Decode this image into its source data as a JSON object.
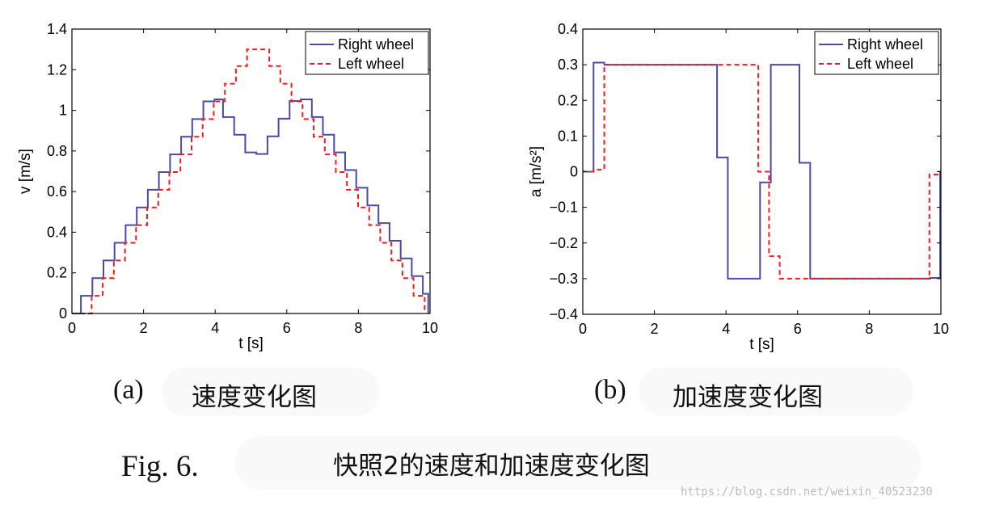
{
  "chart_data": [
    {
      "type": "line",
      "panel": "(a)",
      "title": "",
      "xlabel": "t [s]",
      "ylabel": "v [m/s]",
      "xlim": [
        0,
        10
      ],
      "ylim": [
        0,
        1.4
      ],
      "xticks": [
        "0",
        "2",
        "4",
        "6",
        "8",
        "10"
      ],
      "yticks": [
        "0",
        "0.2",
        "0.4",
        "0.6",
        "0.8",
        "1",
        "1.2",
        "1.4"
      ],
      "grid": false,
      "legend_position": "top-right",
      "step": true,
      "series": [
        {
          "name": "Right wheel",
          "color": "#4a4aa8",
          "style": "solid",
          "points": [
            [
              0,
              0
            ],
            [
              0.25,
              0
            ],
            [
              0.25,
              0.087
            ],
            [
              0.57,
              0.087
            ],
            [
              0.57,
              0.174
            ],
            [
              0.88,
              0.174
            ],
            [
              0.88,
              0.261
            ],
            [
              1.19,
              0.261
            ],
            [
              1.19,
              0.348
            ],
            [
              1.5,
              0.348
            ],
            [
              1.5,
              0.435
            ],
            [
              1.81,
              0.435
            ],
            [
              1.81,
              0.522
            ],
            [
              2.12,
              0.522
            ],
            [
              2.12,
              0.609
            ],
            [
              2.43,
              0.609
            ],
            [
              2.43,
              0.696
            ],
            [
              2.74,
              0.696
            ],
            [
              2.74,
              0.783
            ],
            [
              3.05,
              0.783
            ],
            [
              3.05,
              0.87
            ],
            [
              3.36,
              0.87
            ],
            [
              3.36,
              0.957
            ],
            [
              3.67,
              0.957
            ],
            [
              3.67,
              1.044
            ],
            [
              3.98,
              1.044
            ],
            [
              3.98,
              1.054
            ],
            [
              4.22,
              1.054
            ],
            [
              4.22,
              0.967
            ],
            [
              4.53,
              0.967
            ],
            [
              4.53,
              0.88
            ],
            [
              4.84,
              0.88
            ],
            [
              4.84,
              0.793
            ],
            [
              5.15,
              0.793
            ],
            [
              5.15,
              0.785
            ],
            [
              5.46,
              0.785
            ],
            [
              5.46,
              0.872
            ],
            [
              5.77,
              0.872
            ],
            [
              5.77,
              0.959
            ],
            [
              6.08,
              0.959
            ],
            [
              6.08,
              1.046
            ],
            [
              6.39,
              1.046
            ],
            [
              6.39,
              1.054
            ],
            [
              6.7,
              1.054
            ],
            [
              6.7,
              0.967
            ],
            [
              7.01,
              0.967
            ],
            [
              7.01,
              0.88
            ],
            [
              7.32,
              0.88
            ],
            [
              7.32,
              0.793
            ],
            [
              7.63,
              0.793
            ],
            [
              7.63,
              0.706
            ],
            [
              7.94,
              0.706
            ],
            [
              7.94,
              0.619
            ],
            [
              8.25,
              0.619
            ],
            [
              8.25,
              0.532
            ],
            [
              8.56,
              0.532
            ],
            [
              8.56,
              0.445
            ],
            [
              8.87,
              0.445
            ],
            [
              8.87,
              0.358
            ],
            [
              9.18,
              0.358
            ],
            [
              9.18,
              0.271
            ],
            [
              9.49,
              0.271
            ],
            [
              9.49,
              0.184
            ],
            [
              9.8,
              0.184
            ],
            [
              9.8,
              0.097
            ],
            [
              9.95,
              0.097
            ],
            [
              9.95,
              0
            ]
          ]
        },
        {
          "name": "Left wheel",
          "color": "#ee1c1c",
          "style": "dashed",
          "points": [
            [
              0,
              0
            ],
            [
              0.55,
              0
            ],
            [
              0.55,
              0.087
            ],
            [
              0.86,
              0.087
            ],
            [
              0.86,
              0.174
            ],
            [
              1.17,
              0.174
            ],
            [
              1.17,
              0.261
            ],
            [
              1.48,
              0.261
            ],
            [
              1.48,
              0.348
            ],
            [
              1.79,
              0.348
            ],
            [
              1.79,
              0.435
            ],
            [
              2.1,
              0.435
            ],
            [
              2.1,
              0.522
            ],
            [
              2.41,
              0.522
            ],
            [
              2.41,
              0.609
            ],
            [
              2.72,
              0.609
            ],
            [
              2.72,
              0.696
            ],
            [
              3.03,
              0.696
            ],
            [
              3.03,
              0.783
            ],
            [
              3.34,
              0.783
            ],
            [
              3.34,
              0.87
            ],
            [
              3.65,
              0.87
            ],
            [
              3.65,
              0.957
            ],
            [
              3.96,
              0.957
            ],
            [
              3.96,
              1.044
            ],
            [
              4.27,
              1.044
            ],
            [
              4.27,
              1.131
            ],
            [
              4.58,
              1.131
            ],
            [
              4.58,
              1.218
            ],
            [
              4.89,
              1.218
            ],
            [
              4.89,
              1.3
            ],
            [
              5.2,
              1.3
            ],
            [
              5.2,
              1.3
            ],
            [
              5.51,
              1.3
            ],
            [
              5.51,
              1.218
            ],
            [
              5.82,
              1.218
            ],
            [
              5.82,
              1.131
            ],
            [
              6.13,
              1.131
            ],
            [
              6.13,
              1.044
            ],
            [
              6.44,
              1.044
            ],
            [
              6.44,
              0.957
            ],
            [
              6.75,
              0.957
            ],
            [
              6.75,
              0.87
            ],
            [
              7.06,
              0.87
            ],
            [
              7.06,
              0.783
            ],
            [
              7.37,
              0.783
            ],
            [
              7.37,
              0.696
            ],
            [
              7.68,
              0.696
            ],
            [
              7.68,
              0.609
            ],
            [
              7.99,
              0.609
            ],
            [
              7.99,
              0.522
            ],
            [
              8.3,
              0.522
            ],
            [
              8.3,
              0.435
            ],
            [
              8.61,
              0.435
            ],
            [
              8.61,
              0.348
            ],
            [
              8.92,
              0.348
            ],
            [
              8.92,
              0.261
            ],
            [
              9.23,
              0.261
            ],
            [
              9.23,
              0.174
            ],
            [
              9.54,
              0.174
            ],
            [
              9.54,
              0.087
            ],
            [
              9.85,
              0.087
            ],
            [
              9.85,
              0
            ]
          ]
        }
      ]
    },
    {
      "type": "line",
      "panel": "(b)",
      "title": "",
      "xlabel": "t [s]",
      "ylabel": "a [m/s²]",
      "xlim": [
        0,
        10
      ],
      "ylim": [
        -0.4,
        0.4
      ],
      "xticks": [
        "0",
        "2",
        "4",
        "6",
        "8",
        "10"
      ],
      "yticks": [
        "−0.4",
        "−0.3",
        "−0.2",
        "−0.1",
        "0",
        "0.1",
        "0.2",
        "0.3",
        "0.4"
      ],
      "grid": false,
      "legend_position": "top-right",
      "step": true,
      "series": [
        {
          "name": "Right wheel",
          "color": "#4a4aa8",
          "style": "solid",
          "points": [
            [
              0,
              0
            ],
            [
              0.3,
              0
            ],
            [
              0.3,
              0.306
            ],
            [
              0.6,
              0.306
            ],
            [
              0.6,
              0.3
            ],
            [
              3.75,
              0.3
            ],
            [
              3.75,
              0.04
            ],
            [
              4.05,
              0.04
            ],
            [
              4.05,
              -0.3
            ],
            [
              4.95,
              -0.3
            ],
            [
              4.95,
              -0.03
            ],
            [
              5.25,
              -0.03
            ],
            [
              5.25,
              0.3
            ],
            [
              6.05,
              0.3
            ],
            [
              6.05,
              0.025
            ],
            [
              6.35,
              0.025
            ],
            [
              6.35,
              -0.3
            ],
            [
              9.7,
              -0.3
            ],
            [
              9.7,
              -0.298
            ],
            [
              9.98,
              -0.298
            ],
            [
              9.98,
              0
            ],
            [
              10,
              0
            ]
          ]
        },
        {
          "name": "Left wheel",
          "color": "#ee1c1c",
          "style": "dashed",
          "points": [
            [
              0,
              0
            ],
            [
              0.3,
              0
            ],
            [
              0.3,
              0.006
            ],
            [
              0.6,
              0.006
            ],
            [
              0.6,
              0.3
            ],
            [
              4.9,
              0.3
            ],
            [
              4.9,
              0
            ],
            [
              5.2,
              0
            ],
            [
              5.2,
              -0.237
            ],
            [
              5.5,
              -0.237
            ],
            [
              5.5,
              -0.3
            ],
            [
              9.68,
              -0.3
            ],
            [
              9.68,
              -0.008
            ],
            [
              9.95,
              -0.008
            ],
            [
              9.95,
              0
            ],
            [
              10,
              0
            ]
          ]
        }
      ]
    }
  ],
  "captions": {
    "panel_a_label": "(a)",
    "panel_a_text": "速度变化图",
    "panel_b_label": "(b)",
    "panel_b_text": "加速度变化图",
    "fig_label": "Fig. 6.",
    "fig_text": "快照2的速度和加速度变化图"
  },
  "watermark": "https://blog.csdn.net/weixin_40523230"
}
